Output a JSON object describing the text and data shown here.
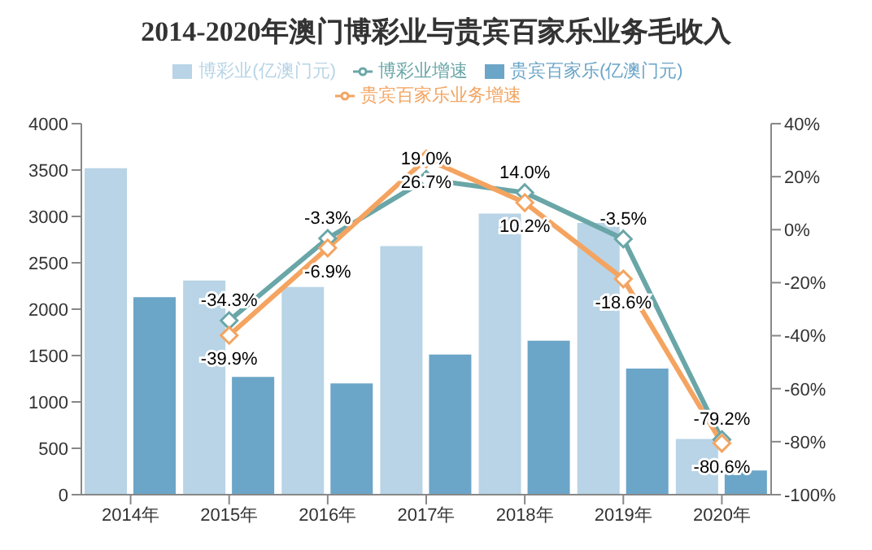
{
  "chart_data": {
    "type": "bar",
    "title": "2014-2020年澳门博彩业与贵宾百家乐业务毛收入",
    "categories": [
      "2014年",
      "2015年",
      "2016年",
      "2017年",
      "2018年",
      "2019年",
      "2020年"
    ],
    "series": [
      {
        "name": "博彩业(亿澳门元)",
        "color": "#b8d4e6",
        "values": [
          3520,
          2310,
          2240,
          2680,
          3030,
          2930,
          600
        ]
      },
      {
        "name": "贵宾百家乐(亿澳门元)",
        "color": "#6ba5c8",
        "values": [
          2130,
          1270,
          1200,
          1510,
          1660,
          1360,
          260
        ]
      },
      {
        "name": "博彩业增速",
        "type": "line",
        "axis": "y2",
        "color": "#6aa6a8",
        "values": [
          null,
          -34.3,
          -3.3,
          19.0,
          14.0,
          -3.5,
          -79.2
        ],
        "value_labels": [
          null,
          "-34.3%",
          "-3.3%",
          "19.0%",
          "14.0%",
          "-3.5%",
          "-79.2%"
        ]
      },
      {
        "name": "贵宾百家乐业务增速",
        "type": "line",
        "axis": "y2",
        "color": "#f4a460",
        "values": [
          null,
          -39.9,
          -6.9,
          26.7,
          10.2,
          -18.6,
          -80.6
        ],
        "value_labels": [
          null,
          "-39.9%",
          "-6.9%",
          "26.7%",
          "10.2%",
          "-18.6%",
          "-80.6%"
        ]
      }
    ],
    "ylim": [
      0,
      4000
    ],
    "yticks": [
      0,
      500,
      1000,
      1500,
      2000,
      2500,
      3000,
      3500,
      4000
    ],
    "y2lim": [
      -100,
      40
    ],
    "y2ticks": [
      {
        "value": -100,
        "label": "-100%"
      },
      {
        "value": -80,
        "label": "-80%"
      },
      {
        "value": -60,
        "label": "-60%"
      },
      {
        "value": -40,
        "label": "-40%"
      },
      {
        "value": -20,
        "label": "-20%"
      },
      {
        "value": 0,
        "label": "0%"
      },
      {
        "value": 20,
        "label": "20%"
      },
      {
        "value": 40,
        "label": "40%"
      }
    ],
    "marker": "diamond",
    "legend": "top",
    "grid": false
  }
}
